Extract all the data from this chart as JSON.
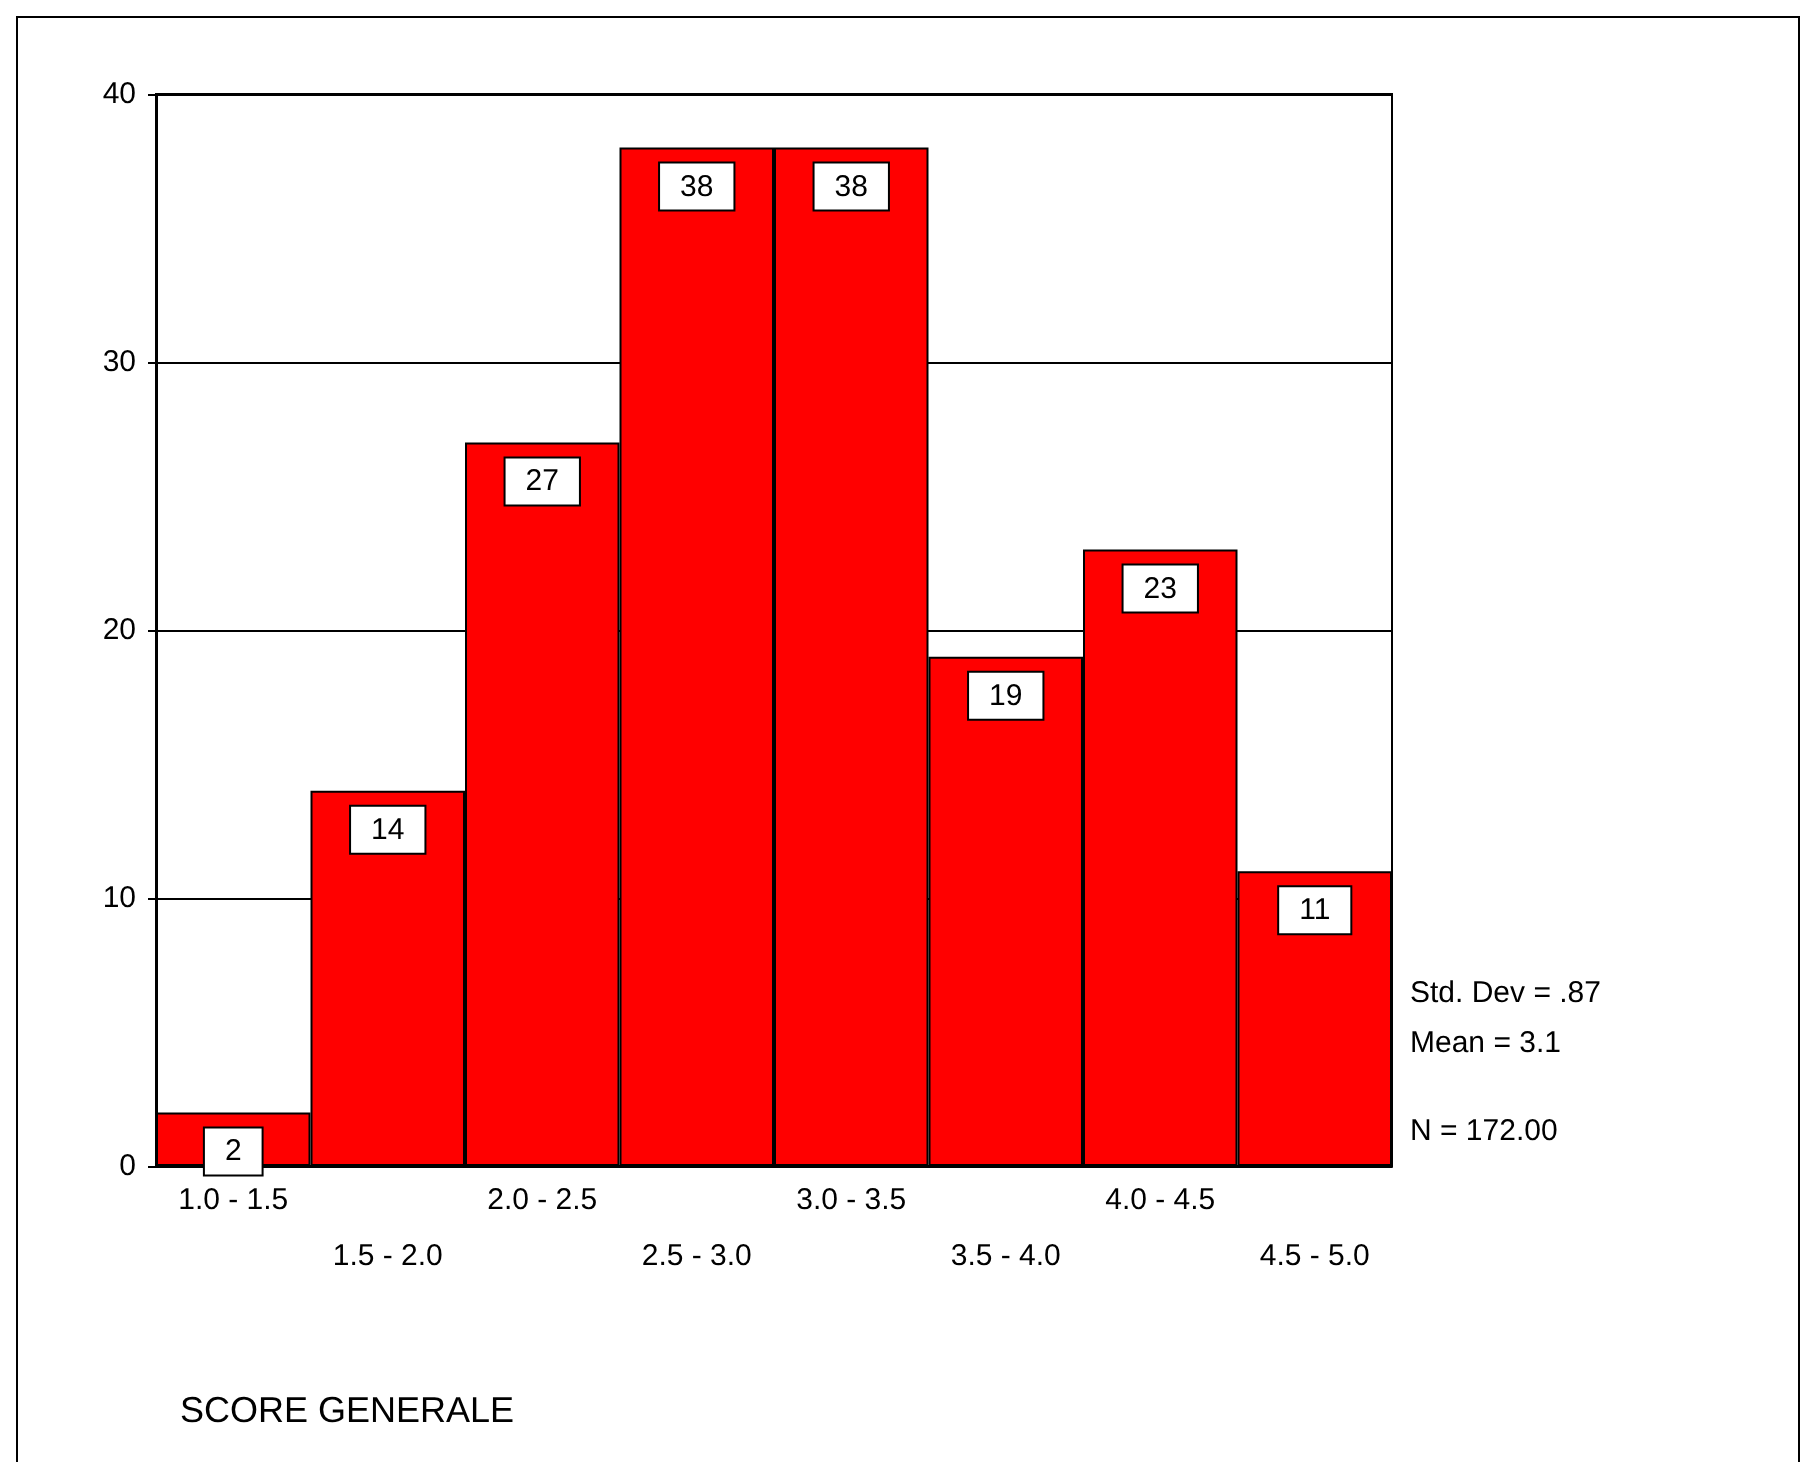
{
  "chart_data": {
    "type": "bar",
    "xlabel": "SCORE GENERALE",
    "categories": [
      "1.0 - 1.5",
      "1.5 - 2.0",
      "2.0 - 2.5",
      "2.5 - 3.0",
      "3.0 - 3.5",
      "3.5 - 4.0",
      "4.0 - 4.5",
      "4.5 - 5.0"
    ],
    "values": [
      2,
      14,
      27,
      38,
      38,
      19,
      23,
      11
    ],
    "color": "#ff0000",
    "ylim": [
      0,
      40
    ],
    "yticks": [
      0,
      10,
      20,
      30,
      40
    ],
    "grid": "y",
    "data_labels": true,
    "annotations": [
      "Std. Dev = .87",
      "Mean = 3.1",
      "N = 172.00"
    ]
  }
}
